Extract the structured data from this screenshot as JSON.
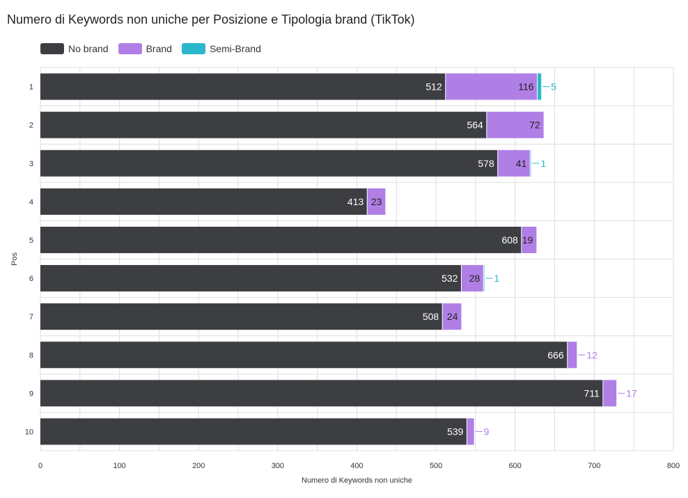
{
  "title": "Numero di Keywords non uniche per Posizione e Tipologia brand (TikTok)",
  "colors": {
    "no_brand": "#3c3e42",
    "brand": "#b07fe6",
    "semi_brand": "#2bb7cb",
    "grid": "#dddddd"
  },
  "chart_data": {
    "type": "bar",
    "orientation": "horizontal",
    "stacked": true,
    "title": "Numero di Keywords non uniche per Posizione e Tipologia brand (TikTok)",
    "xlabel": "Numero di Keywords non uniche",
    "ylabel": "Pos",
    "xlim": [
      0,
      800
    ],
    "xticks": [
      0,
      100,
      200,
      300,
      400,
      500,
      600,
      700,
      800
    ],
    "grid": true,
    "legend_position": "top-left",
    "categories": [
      "1",
      "2",
      "3",
      "4",
      "5",
      "6",
      "7",
      "8",
      "9",
      "10"
    ],
    "series": [
      {
        "name": "No brand",
        "color": "#3c3e42",
        "values": [
          512,
          564,
          578,
          413,
          608,
          532,
          508,
          666,
          711,
          539
        ]
      },
      {
        "name": "Brand",
        "color": "#b07fe6",
        "values": [
          116,
          72,
          41,
          23,
          19,
          28,
          24,
          12,
          17,
          9
        ]
      },
      {
        "name": "Semi-Brand",
        "color": "#2bb7cb",
        "values": [
          5,
          null,
          1,
          null,
          null,
          1,
          null,
          null,
          null,
          null
        ]
      }
    ]
  }
}
